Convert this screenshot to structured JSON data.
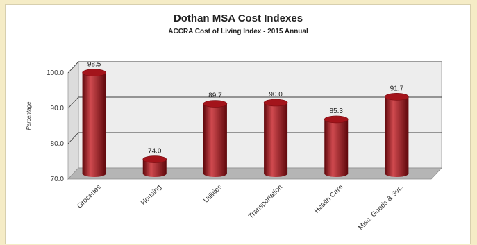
{
  "chart_data": {
    "type": "bar",
    "title": "Dothan MSA Cost Indexes",
    "subtitle": "ACCRA Cost of Living Index - 2015 Annual",
    "ylabel": "Percentage",
    "xlabel": "",
    "categories": [
      "Groceries",
      "Housing",
      "Utilities",
      "Transportation",
      "Health Care",
      "Misc. Goods & Svc."
    ],
    "values": [
      98.5,
      74.0,
      89.7,
      90.0,
      85.3,
      91.7
    ],
    "data_labels": [
      "98.5",
      "74.0",
      "89.7",
      "90.0",
      "85.3",
      "91.7"
    ],
    "ylim": [
      70,
      100
    ],
    "yticks": [
      "70.0",
      "80.0",
      "90.0",
      "100.0"
    ],
    "grid": true,
    "legend": "none",
    "style": "3d-cylinder",
    "colors": {
      "bar": "#a3141b",
      "bar_dark": "#5e070b",
      "bar_light": "#d04a4f",
      "wall": "#ededed",
      "floor": "#b5b5b5",
      "grid": "#3a3a3a",
      "background": "#f5ecc6"
    }
  }
}
